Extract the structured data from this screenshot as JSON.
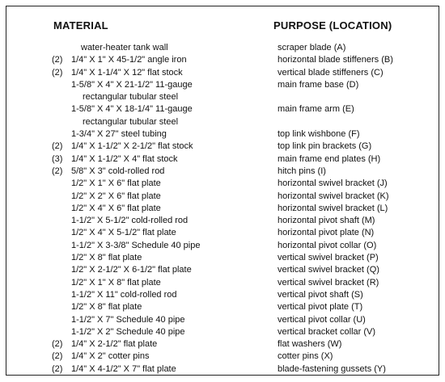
{
  "headers": {
    "material": "MATERIAL",
    "purpose": "PURPOSE (LOCATION)"
  },
  "rows": [
    {
      "qty": "",
      "material": "water-heater tank wall",
      "purpose": "scraper blade (A)",
      "indent": "wide"
    },
    {
      "qty": "(2)",
      "material": "1/4\" X 1\" X 45-1/2\" angle iron",
      "purpose": "horizontal blade stiffeners (B)"
    },
    {
      "qty": "(2)",
      "material": "1/4\" X 1-1/4\" X 12\" flat stock",
      "purpose": "vertical blade stiffeners (C)"
    },
    {
      "qty": "",
      "material": "1-5/8\" X 4\" X 21-1/2\" 11-gauge",
      "purpose": "main frame base (D)"
    },
    {
      "qty": "",
      "material": "rectangular tubular steel",
      "purpose": "",
      "indent": "wide"
    },
    {
      "qty": "",
      "material": "1-5/8\" X 4\" X 18-1/4\" 11-gauge",
      "purpose": "main frame arm (E)"
    },
    {
      "qty": "",
      "material": "rectangular tubular steel",
      "purpose": "",
      "indent": "wide"
    },
    {
      "qty": "",
      "material": "1-3/4\" X 27\" steel tubing",
      "purpose": "top link wishbone (F)"
    },
    {
      "qty": "(2)",
      "material": "1/4\" X 1-1/2\" X 2-1/2\" flat stock",
      "purpose": "top link pin brackets (G)"
    },
    {
      "qty": "(3)",
      "material": "1/4\" X 1-1/2\" X 4\" flat stock",
      "purpose": "main frame end plates (H)"
    },
    {
      "qty": "(2)",
      "material": "5/8\" X 3\" cold-rolled rod",
      "purpose": "hitch pins (I)"
    },
    {
      "qty": "",
      "material": "1/2\" X 1\" X 6\" flat plate",
      "purpose": "horizontal swivel bracket (J)"
    },
    {
      "qty": "",
      "material": "1/2\" X 2\" X 6\" flat plate",
      "purpose": "horizontal swivel bracket (K)"
    },
    {
      "qty": "",
      "material": "1/2\" X 4\" X 6\" flat plate",
      "purpose": "horizontal swivel bracket (L)"
    },
    {
      "qty": "",
      "material": "1-1/2\" X 5-1/2\" cold-rolled rod",
      "purpose": "horizontal pivot shaft (M)"
    },
    {
      "qty": "",
      "material": "1/2\" X 4\" X 5-1/2\" flat plate",
      "purpose": "horizontal pivot plate (N)"
    },
    {
      "qty": "",
      "material": "1-1/2\" X 3-3/8\" Schedule 40 pipe",
      "purpose": "horizontal pivot collar (O)"
    },
    {
      "qty": "",
      "material": "1/2\" X 8\" flat plate",
      "purpose": "vertical swivel bracket (P)"
    },
    {
      "qty": "",
      "material": "1/2\" X 2-1/2\" X 6-1/2\" flat plate",
      "purpose": "vertical swivel bracket (Q)"
    },
    {
      "qty": "",
      "material": "1/2\" X 1\" X 8\" flat plate",
      "purpose": "vertical swivel bracket (R)"
    },
    {
      "qty": "",
      "material": "1-1/2\" X 11\" cold-rolled rod",
      "purpose": "vertical pivot shaft (S)"
    },
    {
      "qty": "",
      "material": "1/2\" X 8\" flat plate",
      "purpose": "vertical pivot plate (T)"
    },
    {
      "qty": "",
      "material": "1-1/2\" X 7\" Schedule 40 pipe",
      "purpose": "vertical pivot collar (U)"
    },
    {
      "qty": "",
      "material": "1-1/2\" X 2\" Schedule 40 pipe",
      "purpose": "vertical bracket collar (V)"
    },
    {
      "qty": "(2)",
      "material": "1/4\" X 2-1/2\" flat plate",
      "purpose": "flat washers (W)"
    },
    {
      "qty": "(2)",
      "material": "1/4\" X 2\" cotter pins",
      "purpose": "cotter pins (X)"
    },
    {
      "qty": "(2)",
      "material": "1/4\" X 4-1/2\" X 7\" flat plate",
      "purpose": "blade-fastening gussets (Y)"
    }
  ]
}
